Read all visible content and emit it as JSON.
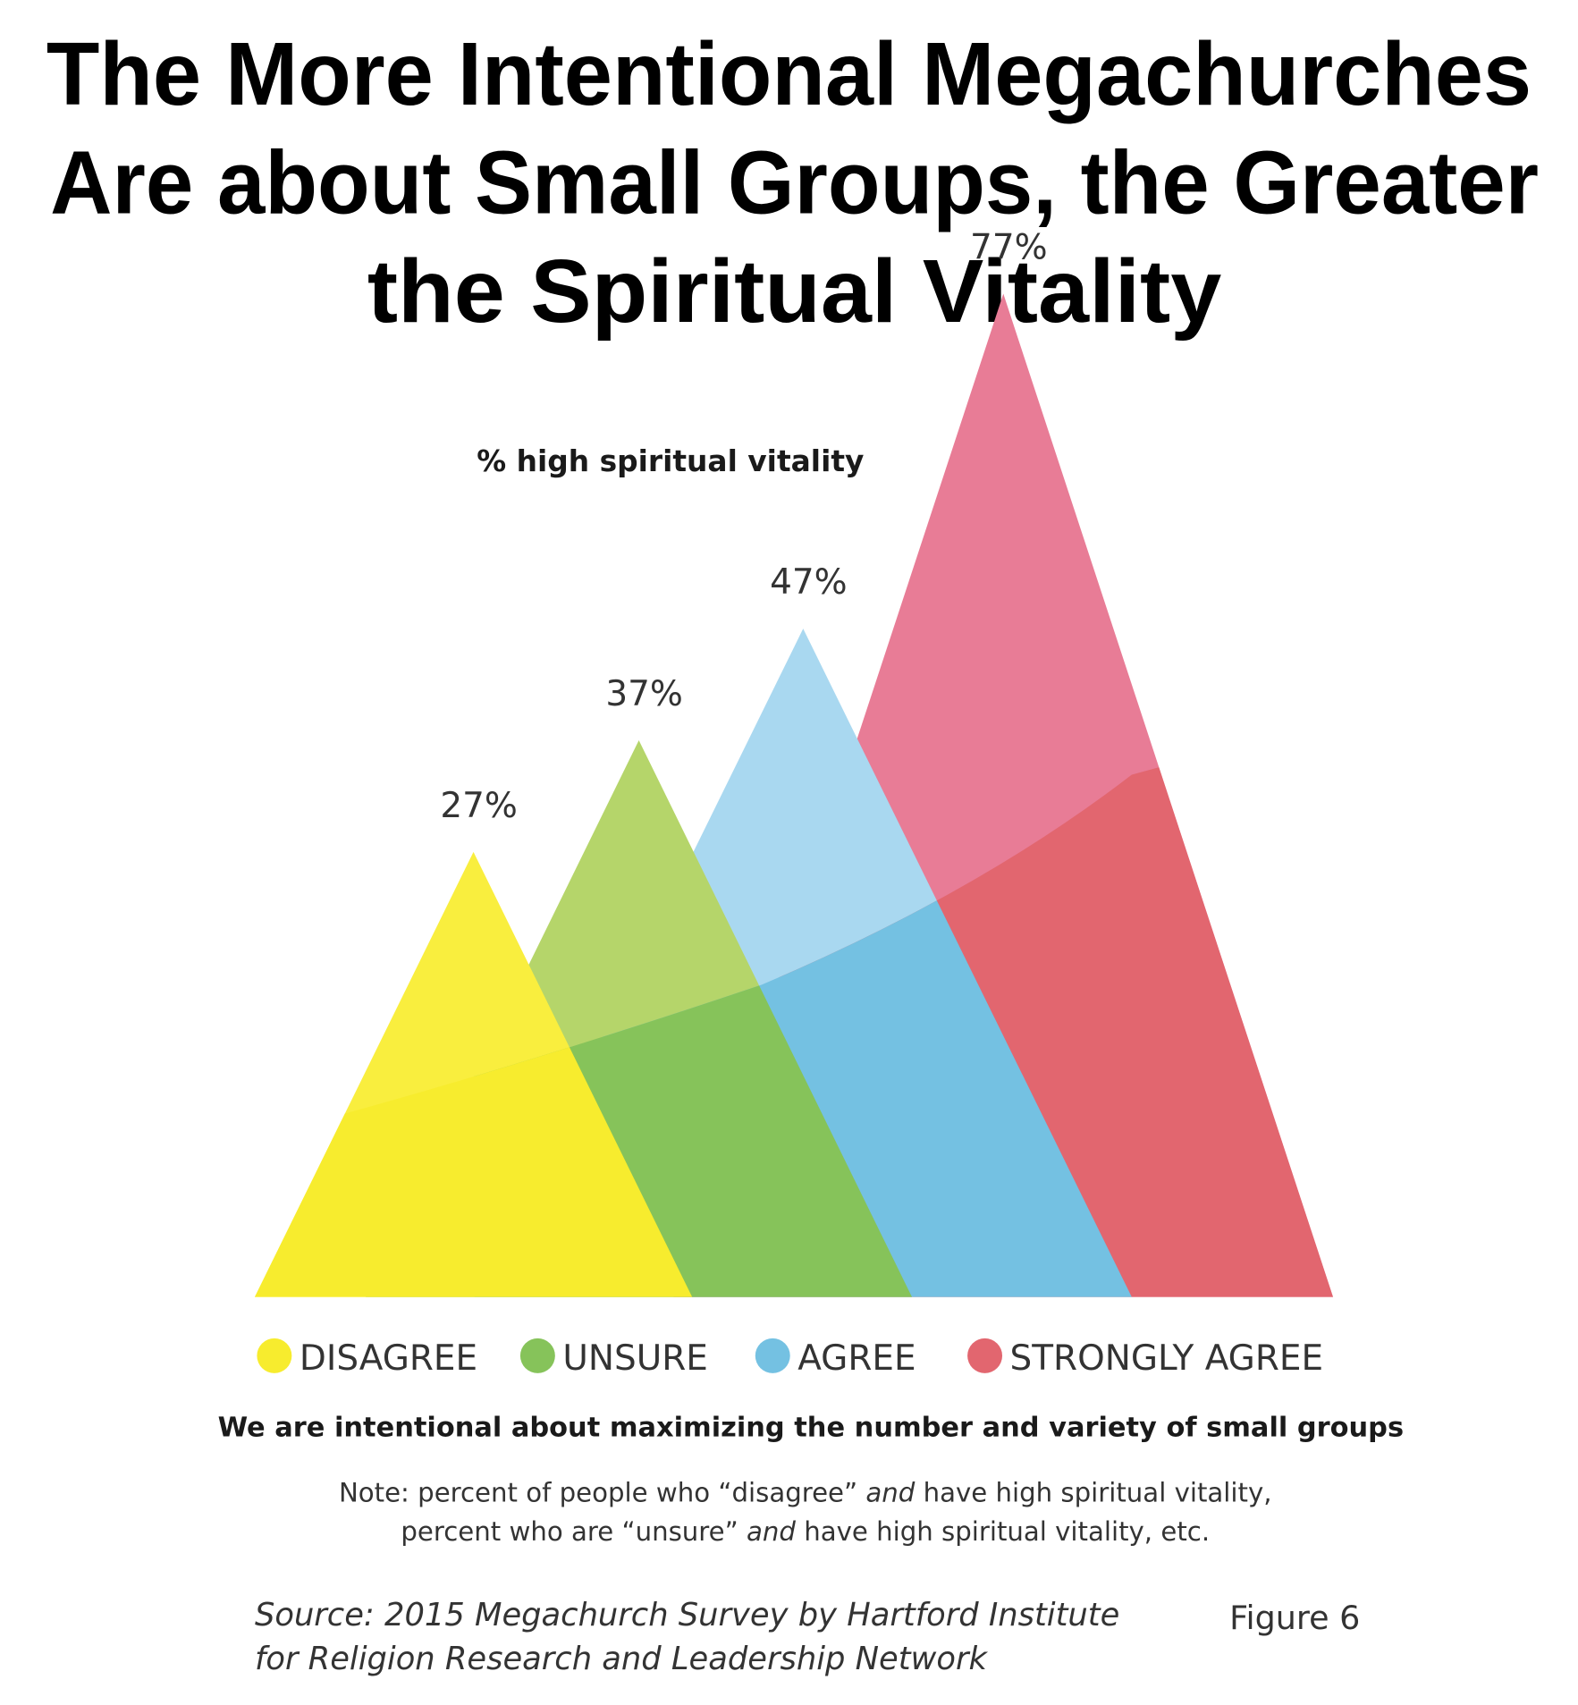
{
  "chart_data": {
    "type": "area",
    "title": [
      "The More Intentional Megachurches",
      "Are about Small Groups, the Greater",
      "the Spiritual Vitality"
    ],
    "subtitle": "% high spiritual vitality",
    "xlabel": "We are intentional about maximizing the number and variety of small groups",
    "categories": [
      "DISAGREE",
      "UNSURE",
      "AGREE",
      "STRONGLY AGREE"
    ],
    "values": [
      27,
      37,
      47,
      77
    ],
    "data_labels": [
      "27%",
      "37%",
      "47%",
      "77%"
    ],
    "colors": [
      "#f7ec2e",
      "#86c35a",
      "#74c1e2",
      "#e2666f"
    ],
    "colors_light": [
      "#f9ee3e",
      "#b5d56a",
      "#a9d8f0",
      "#e87c96"
    ],
    "legend_placement": "bottom",
    "grid": false
  },
  "note": [
    "Note: percent of people who “disagree” ",
    "and",
    " have high spiritual vitality,",
    "percent who are “unsure” ",
    "and",
    " have high spiritual vitality, etc."
  ],
  "source": [
    "Source: 2015 Megachurch Survey by Hartford Institute",
    "for Religion Research and Leadership Network"
  ],
  "figure_label": "Figure 6"
}
